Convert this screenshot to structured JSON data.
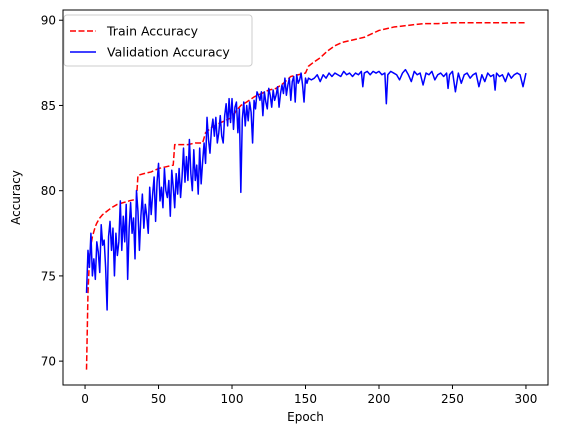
{
  "chart_data": {
    "type": "line",
    "title": "",
    "xlabel": "Epoch",
    "ylabel": "Accuracy",
    "xlim": [
      -15,
      315
    ],
    "ylim": [
      68.6,
      90.6
    ],
    "xticks": [
      0,
      50,
      100,
      150,
      200,
      250,
      300
    ],
    "yticks": [
      70,
      75,
      80,
      85,
      90
    ],
    "grid": false,
    "legend_position": "top-left",
    "series": [
      {
        "name": "Train Accuracy",
        "color": "#ff0000",
        "style": "dashed",
        "points": [
          [
            1,
            69.5
          ],
          [
            2,
            74.0
          ],
          [
            3,
            76.0
          ],
          [
            4,
            76.8
          ],
          [
            5,
            77.3
          ],
          [
            6,
            77.6
          ],
          [
            7,
            77.9
          ],
          [
            8,
            78.1
          ],
          [
            10,
            78.4
          ],
          [
            12,
            78.6
          ],
          [
            15,
            78.8
          ],
          [
            18,
            79.0
          ],
          [
            22,
            79.2
          ],
          [
            26,
            79.3
          ],
          [
            30,
            79.4
          ],
          [
            35,
            79.5
          ],
          [
            36,
            80.9
          ],
          [
            40,
            81.0
          ],
          [
            45,
            81.1
          ],
          [
            50,
            81.3
          ],
          [
            55,
            81.4
          ],
          [
            60,
            81.5
          ],
          [
            61,
            82.7
          ],
          [
            65,
            82.7
          ],
          [
            70,
            82.7
          ],
          [
            75,
            82.8
          ],
          [
            80,
            82.8
          ],
          [
            82,
            83.4
          ],
          [
            86,
            83.7
          ],
          [
            90,
            83.9
          ],
          [
            95,
            84.1
          ],
          [
            100,
            84.3
          ],
          [
            103,
            84.7
          ],
          [
            106,
            85.0
          ],
          [
            110,
            85.2
          ],
          [
            115,
            85.5
          ],
          [
            120,
            85.7
          ],
          [
            125,
            85.9
          ],
          [
            130,
            86.0
          ],
          [
            135,
            86.3
          ],
          [
            140,
            86.7
          ],
          [
            145,
            86.8
          ],
          [
            150,
            86.9
          ],
          [
            152,
            87.3
          ],
          [
            155,
            87.5
          ],
          [
            160,
            87.8
          ],
          [
            165,
            88.2
          ],
          [
            170,
            88.5
          ],
          [
            175,
            88.7
          ],
          [
            180,
            88.8
          ],
          [
            185,
            88.9
          ],
          [
            190,
            89.0
          ],
          [
            195,
            89.2
          ],
          [
            200,
            89.4
          ],
          [
            205,
            89.5
          ],
          [
            210,
            89.6
          ],
          [
            220,
            89.7
          ],
          [
            230,
            89.8
          ],
          [
            240,
            89.8
          ],
          [
            250,
            89.85
          ],
          [
            260,
            89.85
          ],
          [
            270,
            89.85
          ],
          [
            280,
            89.85
          ],
          [
            290,
            89.85
          ],
          [
            300,
            89.85
          ]
        ]
      },
      {
        "name": "Validation Accuracy",
        "color": "#0000ff",
        "style": "solid",
        "points": [
          [
            1,
            74.0
          ],
          [
            2,
            76.5
          ],
          [
            3,
            75.5
          ],
          [
            4,
            77.5
          ],
          [
            5,
            75.0
          ],
          [
            6,
            76.0
          ],
          [
            7,
            74.8
          ],
          [
            8,
            77.0
          ],
          [
            9,
            76.4
          ],
          [
            10,
            75.2
          ],
          [
            11,
            78.0
          ],
          [
            12,
            76.8
          ],
          [
            13,
            77.1
          ],
          [
            14,
            75.5
          ],
          [
            15,
            73.0
          ],
          [
            16,
            77.3
          ],
          [
            17,
            78.2
          ],
          [
            18,
            76.5
          ],
          [
            19,
            77.8
          ],
          [
            20,
            75.0
          ],
          [
            21,
            77.5
          ],
          [
            22,
            76.2
          ],
          [
            23,
            77.0
          ],
          [
            24,
            79.4
          ],
          [
            25,
            76.5
          ],
          [
            26,
            78.5
          ],
          [
            27,
            77.0
          ],
          [
            28,
            79.2
          ],
          [
            29,
            74.8
          ],
          [
            30,
            77.8
          ],
          [
            31,
            79.3
          ],
          [
            32,
            77.5
          ],
          [
            33,
            78.4
          ],
          [
            34,
            76.0
          ],
          [
            35,
            80.0
          ],
          [
            36,
            78.8
          ],
          [
            37,
            76.5
          ],
          [
            38,
            78.5
          ],
          [
            39,
            79.8
          ],
          [
            40,
            77.8
          ],
          [
            41,
            79.2
          ],
          [
            42,
            78.5
          ],
          [
            43,
            77.5
          ],
          [
            44,
            80.2
          ],
          [
            45,
            78.6
          ],
          [
            46,
            79.8
          ],
          [
            47,
            80.8
          ],
          [
            48,
            78.2
          ],
          [
            49,
            80.5
          ],
          [
            50,
            81.6
          ],
          [
            51,
            79.4
          ],
          [
            52,
            80.2
          ],
          [
            53,
            79.0
          ],
          [
            54,
            81.3
          ],
          [
            55,
            80.0
          ],
          [
            56,
            79.6
          ],
          [
            57,
            80.6
          ],
          [
            58,
            78.5
          ],
          [
            59,
            81.2
          ],
          [
            60,
            80.2
          ],
          [
            61,
            79.0
          ],
          [
            62,
            81.0
          ],
          [
            63,
            79.8
          ],
          [
            64,
            81.3
          ],
          [
            65,
            79.6
          ],
          [
            66,
            80.8
          ],
          [
            67,
            82.5
          ],
          [
            68,
            80.5
          ],
          [
            69,
            82.0
          ],
          [
            70,
            80.6
          ],
          [
            71,
            83.0
          ],
          [
            72,
            81.0
          ],
          [
            73,
            80.0
          ],
          [
            74,
            82.4
          ],
          [
            75,
            80.6
          ],
          [
            76,
            81.5
          ],
          [
            77,
            79.8
          ],
          [
            78,
            82.5
          ],
          [
            79,
            80.4
          ],
          [
            80,
            81.7
          ],
          [
            81,
            82.8
          ],
          [
            82,
            81.6
          ],
          [
            83,
            84.3
          ],
          [
            84,
            83.0
          ],
          [
            85,
            82.2
          ],
          [
            86,
            83.6
          ],
          [
            87,
            84.2
          ],
          [
            88,
            83.2
          ],
          [
            89,
            84.3
          ],
          [
            90,
            82.8
          ],
          [
            91,
            83.4
          ],
          [
            92,
            84.4
          ],
          [
            93,
            83.2
          ],
          [
            94,
            82.8
          ],
          [
            95,
            84.4
          ],
          [
            96,
            85.1
          ],
          [
            97,
            83.8
          ],
          [
            98,
            85.4
          ],
          [
            99,
            84.0
          ],
          [
            100,
            85.4
          ],
          [
            101,
            83.6
          ],
          [
            102,
            84.9
          ],
          [
            103,
            85.2
          ],
          [
            104,
            83.4
          ],
          [
            105,
            84.8
          ],
          [
            106,
            79.9
          ],
          [
            107,
            84.2
          ],
          [
            108,
            85.2
          ],
          [
            109,
            83.8
          ],
          [
            110,
            85.0
          ],
          [
            111,
            84.1
          ],
          [
            112,
            85.2
          ],
          [
            113,
            84.6
          ],
          [
            114,
            82.8
          ],
          [
            115,
            85.3
          ],
          [
            116,
            84.8
          ],
          [
            117,
            85.8
          ],
          [
            118,
            85.6
          ],
          [
            119,
            85.3
          ],
          [
            120,
            85.8
          ],
          [
            121,
            84.4
          ],
          [
            122,
            85.8
          ],
          [
            123,
            85.2
          ],
          [
            124,
            84.8
          ],
          [
            125,
            86.0
          ],
          [
            126,
            85.6
          ],
          [
            127,
            84.9
          ],
          [
            128,
            85.9
          ],
          [
            129,
            85.3
          ],
          [
            130,
            85.6
          ],
          [
            131,
            86.1
          ],
          [
            132,
            84.9
          ],
          [
            133,
            85.7
          ],
          [
            134,
            86.2
          ],
          [
            135,
            85.7
          ],
          [
            136,
            86.6
          ],
          [
            137,
            85.6
          ],
          [
            138,
            86.2
          ],
          [
            139,
            86.6
          ],
          [
            140,
            85.3
          ],
          [
            141,
            86.4
          ],
          [
            142,
            86.7
          ],
          [
            143,
            85.2
          ],
          [
            144,
            86.8
          ],
          [
            145,
            86.3
          ],
          [
            146,
            86.5
          ],
          [
            147,
            86.9
          ],
          [
            148,
            86.2
          ],
          [
            149,
            85.2
          ],
          [
            150,
            86.6
          ],
          [
            151,
            86.3
          ],
          [
            152,
            86.6
          ],
          [
            154,
            86.5
          ],
          [
            156,
            86.6
          ],
          [
            158,
            86.8
          ],
          [
            160,
            86.4
          ],
          [
            162,
            86.8
          ],
          [
            164,
            86.6
          ],
          [
            166,
            86.9
          ],
          [
            168,
            86.7
          ],
          [
            170,
            86.9
          ],
          [
            172,
            86.8
          ],
          [
            174,
            86.7
          ],
          [
            176,
            87.0
          ],
          [
            178,
            86.8
          ],
          [
            180,
            86.9
          ],
          [
            182,
            86.7
          ],
          [
            184,
            86.9
          ],
          [
            186,
            86.8
          ],
          [
            188,
            87.0
          ],
          [
            189,
            86.1
          ],
          [
            190,
            86.9
          ],
          [
            192,
            87.0
          ],
          [
            194,
            86.8
          ],
          [
            196,
            87.0
          ],
          [
            198,
            86.9
          ],
          [
            200,
            87.0
          ],
          [
            202,
            86.8
          ],
          [
            204,
            86.9
          ],
          [
            205,
            85.1
          ],
          [
            206,
            86.8
          ],
          [
            208,
            87.0
          ],
          [
            210,
            86.9
          ],
          [
            212,
            86.8
          ],
          [
            214,
            86.5
          ],
          [
            216,
            86.9
          ],
          [
            218,
            87.1
          ],
          [
            220,
            86.8
          ],
          [
            222,
            86.4
          ],
          [
            224,
            87.0
          ],
          [
            226,
            86.8
          ],
          [
            228,
            86.9
          ],
          [
            230,
            86.2
          ],
          [
            232,
            86.9
          ],
          [
            234,
            86.8
          ],
          [
            236,
            87.0
          ],
          [
            238,
            86.5
          ],
          [
            240,
            86.8
          ],
          [
            242,
            86.9
          ],
          [
            244,
            86.7
          ],
          [
            246,
            86.9
          ],
          [
            247,
            86.0
          ],
          [
            248,
            86.8
          ],
          [
            250,
            87.0
          ],
          [
            252,
            85.8
          ],
          [
            254,
            86.9
          ],
          [
            256,
            86.3
          ],
          [
            258,
            86.8
          ],
          [
            260,
            86.9
          ],
          [
            262,
            86.6
          ],
          [
            264,
            86.8
          ],
          [
            266,
            86.9
          ],
          [
            268,
            86.1
          ],
          [
            270,
            86.8
          ],
          [
            272,
            86.4
          ],
          [
            274,
            86.9
          ],
          [
            276,
            86.7
          ],
          [
            278,
            86.8
          ],
          [
            279,
            85.9
          ],
          [
            280,
            86.9
          ],
          [
            282,
            86.7
          ],
          [
            284,
            86.8
          ],
          [
            286,
            86.4
          ],
          [
            288,
            86.9
          ],
          [
            290,
            86.6
          ],
          [
            292,
            86.8
          ],
          [
            294,
            86.9
          ],
          [
            296,
            86.8
          ],
          [
            298,
            86.1
          ],
          [
            300,
            86.9
          ]
        ]
      }
    ]
  }
}
